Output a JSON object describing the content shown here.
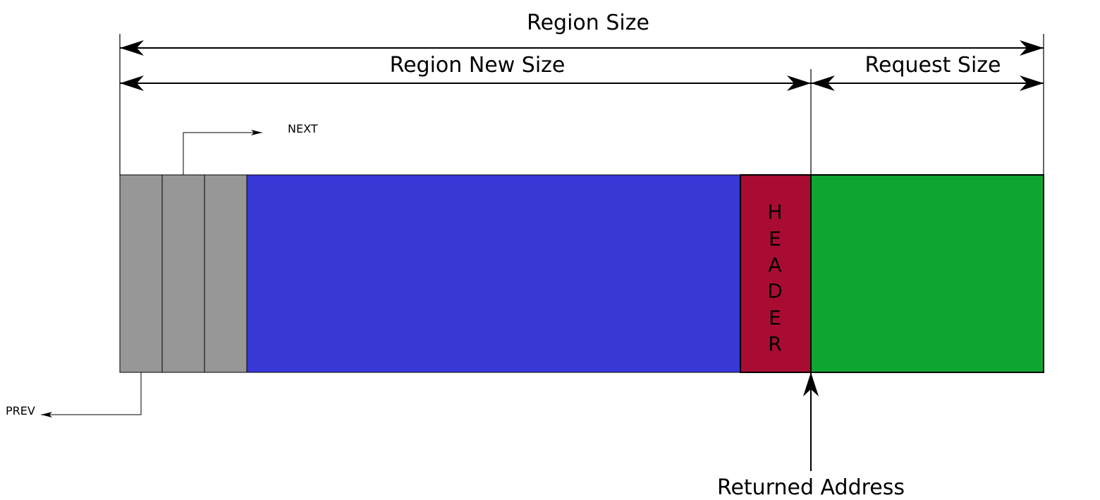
{
  "labels": {
    "region_size": "Region Size",
    "region_new_size": "Region New Size",
    "request_size": "Request Size",
    "next": "NEXT",
    "prev": "PREV",
    "returned_address": "Returned Address"
  },
  "header_letters": [
    "H",
    "E",
    "A",
    "D",
    "E",
    "R"
  ],
  "colors": {
    "link_fields": "#979797",
    "free_region": "#3838d6",
    "header": "#a80c32",
    "request_block": "#0ea630"
  }
}
